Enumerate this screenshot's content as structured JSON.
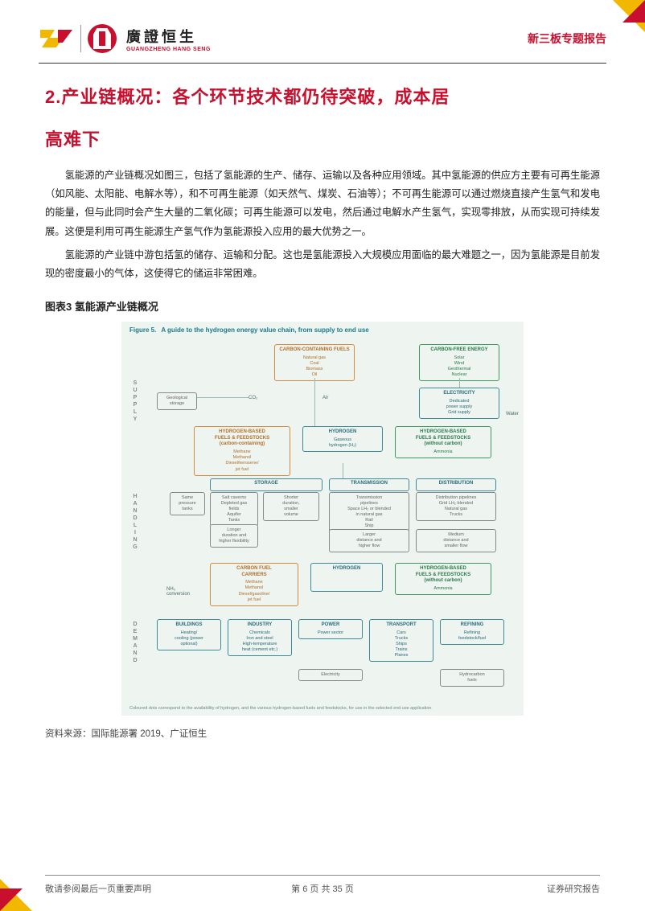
{
  "brand": {
    "cn": "廣證恒生",
    "en": "GUANGZHENG HANG SENG"
  },
  "report_type": "新三板专题报告",
  "heading_l1": "2.产业链概况：各个环节技术都仍待突破，成本居",
  "heading_l2": "高难下",
  "p1": "氢能源的产业链概况如图三，包括了氢能源的生产、储存、运输以及各种应用领域。其中氢能源的供应方主要有可再生能源（如风能、太阳能、电解水等），和不可再生能源（如天然气、煤炭、石油等）；不可再生能源可以通过燃烧直接产生氢气和发电的能量，但与此同时会产生大量的二氧化碳；可再生能源可以发电，然后通过电解水产生氢气，实现零排放，从而实现可持续发展。这便是利用可再生能源生产氢气作为氢能源投入应用的最大优势之一。",
  "p2": "氢能源的产业链中游包括氢的储存、运输和分配。这也是氢能源投入大规模应用面临的最大难题之一，因为氢能源是目前发现的密度最小的气体，这使得它的储运非常困难。",
  "fig_title": "图表3 氢能源产业链概况",
  "fig": {
    "title_prefix": "Figure 5.",
    "title": "A guide to the hydrogen energy value chain, from supply to end use",
    "stages": {
      "supply": "SUPPLY",
      "handling": "HANDLING",
      "demand": "DEMAND"
    },
    "supply": {
      "fuels": {
        "hdr": "CARBON-CONTAINING FUELS",
        "body": "Natural gas\nCoal\nBiomass\nOil"
      },
      "carbonfree": {
        "hdr": "CARBON-FREE ENERGY",
        "body": "Solar\nWind\nGeothermal\nNuclear"
      },
      "electricity": {
        "hdr": "ELECTRICITY",
        "body": "Dedicated\npower supply\nGrid supply"
      },
      "geo": "Geological\nstorage",
      "co2": "CO₂",
      "air": "Air",
      "water": "Water",
      "hfeed_c": {
        "hdr": "HYDROGEN-BASED\nFUELS & FEEDSTOCKS\n(carbon-containing)",
        "body": "Methane\nMethanol\nDiesel/kerosene/\njet fuel"
      },
      "hydrogen": {
        "hdr": "HYDROGEN",
        "body": "Gaseous\nhydrogen (H₂)"
      },
      "hfeed_nc": {
        "hdr": "HYDROGEN-BASED\nFUELS & FEEDSTOCKS\n(without carbon)",
        "body": "Ammonia"
      }
    },
    "handling": {
      "storage": {
        "hdr": "STORAGE",
        "c1": "Same\npressure\ntanks",
        "c2": "Salt caverns\nDepleted gas\nfields\nAquifer\nTanks",
        "c3": "Shorter\nduration,\nsmaller\nvolume",
        "c4": "Longer\nduration and\nhigher flexibility"
      },
      "trans": {
        "hdr": "TRANSMISSION",
        "body": "Transmission\npipelines\nSpace LH₂ or blended\nin natural gas\nRail\nShip"
      },
      "dist": {
        "hdr": "DISTRIBUTION",
        "body": "Distribution pipelines\nGrid LH₂ blended\nNatural gas\nTrucks"
      },
      "row2a": "Larger\ndistance and\nhigher flow",
      "row2b": "Medium\ndistance and\nsmaller flow"
    },
    "demand_top": {
      "carbon_carriers": {
        "hdr": "CARBON FUEL\nCARRIERS",
        "body": "Methane\nMethanol\nDiesel/gasoline/\njet fuel"
      },
      "hydrogen": {
        "hdr": "HYDROGEN"
      },
      "hfeed_nc": {
        "hdr": "HYDROGEN-BASED\nFUELS & FEEDSTOCKS\n(without carbon)",
        "body": "Ammonia"
      },
      "nh3": "NH₃\nconversion"
    },
    "demand_bot": {
      "buildings": {
        "hdr": "BUILDINGS",
        "body": "Heating/\ncooling (power\noptional)"
      },
      "industry": {
        "hdr": "INDUSTRY",
        "body": "Chemicals\nIron and steel\nHigh-temperature\nheat (cement etc.)"
      },
      "power": {
        "hdr": "POWER",
        "body": "Power sector"
      },
      "transport": {
        "hdr": "TRANSPORT",
        "body": "Cars\nTrucks\nShips\nTrains\nPlanes"
      },
      "refining": {
        "hdr": "REFINING",
        "body": "Refining\nfeedstock/fuel"
      },
      "elec": "Electricity",
      "hydro": "Hydrocarbon\nfuels"
    },
    "footer": "Coloured dots correspond to the availability of hydrogen, and the various hydrogen-based fuels and feedstocks, for use in the selected end use application"
  },
  "source": "资料来源：国际能源署 2019、广证恒生",
  "footer": {
    "left": "敬请参阅最后一页重要声明",
    "center_a": "第 6 页",
    "center_b": "共 35 页",
    "right": "证券研究报告"
  },
  "colors": {
    "red": "#c8102e",
    "yellow": "#f2b800",
    "figbg": "#eef4f0",
    "orange": "#d88a3a",
    "green": "#3a9a5a",
    "teal": "#3a8a9a"
  }
}
